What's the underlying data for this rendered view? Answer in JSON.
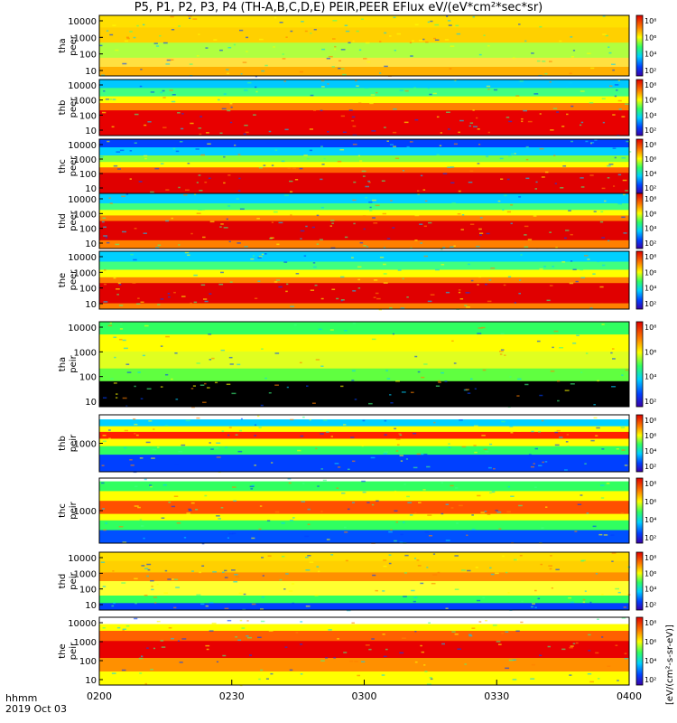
{
  "chart_data": {
    "type": "heatmap",
    "title": "P5, P1, P2, P3, P4 (TH-A,B,C,D,E) PEIR,PEER EFlux eV/(eV*cm²*sec*sr)",
    "x_ticks": [
      "0200",
      "0230",
      "0300",
      "0330",
      "0400"
    ],
    "x_range": [
      "0200",
      "0400"
    ],
    "time_caption": "hhmm",
    "date_caption": "2019 Oct 03",
    "colorbar_label": "[eV/(cm²-s-sr-eV)]",
    "colorbar_ticks": [
      "10⁸",
      "10⁶",
      "10⁴",
      "10²"
    ],
    "panels": [
      {
        "probe": "tha",
        "species": "peer",
        "yticks": [
          "10000",
          "1000",
          "100",
          "10"
        ],
        "log": true
      },
      {
        "probe": "thb",
        "species": "peer",
        "yticks": [
          "10000",
          "1000",
          "100",
          "10"
        ],
        "log": true
      },
      {
        "probe": "thc",
        "species": "peer",
        "yticks": [
          "10000",
          "1000",
          "100",
          "10"
        ],
        "log": true
      },
      {
        "probe": "thd",
        "species": "peer",
        "yticks": [
          "10000",
          "1000",
          "100",
          "10"
        ],
        "log": true
      },
      {
        "probe": "the",
        "species": "peer",
        "yticks": [
          "10000",
          "1000",
          "100",
          "10"
        ],
        "log": true
      },
      {
        "probe": "tha",
        "species": "peir",
        "yticks": [
          "10000",
          "1000",
          "100",
          "10"
        ],
        "log": true
      },
      {
        "probe": "thb",
        "species": "peir",
        "yticks": [
          "1000"
        ],
        "log": true
      },
      {
        "probe": "thc",
        "species": "peir",
        "yticks": [
          "1000"
        ],
        "log": true
      },
      {
        "probe": "thd",
        "species": "peir",
        "yticks": [
          "10000",
          "1000",
          "100",
          "10"
        ],
        "log": true
      },
      {
        "probe": "the",
        "species": "peir",
        "yticks": [
          "10000",
          "1000",
          "100",
          "10"
        ],
        "log": true
      }
    ]
  }
}
